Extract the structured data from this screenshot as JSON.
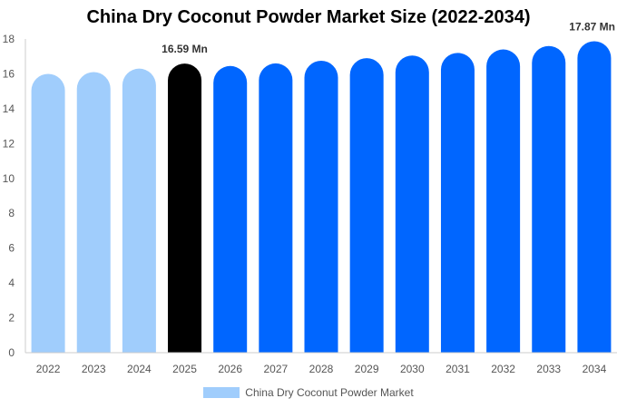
{
  "chart_data": {
    "type": "bar",
    "title": "China Dry Coconut Powder Market Size (2022-2034)",
    "categories": [
      "2022",
      "2023",
      "2024",
      "2025",
      "2026",
      "2027",
      "2028",
      "2029",
      "2030",
      "2031",
      "2032",
      "2033",
      "2034"
    ],
    "series": [
      {
        "name": "China Dry Coconut Powder Market",
        "values": [
          16.0,
          16.1,
          16.3,
          16.59,
          16.45,
          16.6,
          16.75,
          16.9,
          17.05,
          17.2,
          17.4,
          17.6,
          17.87
        ]
      }
    ],
    "data_labels": [
      {
        "category": "2025",
        "text": "16.59 Mn"
      },
      {
        "category": "2034",
        "text": "17.87 Mn"
      }
    ],
    "yticks": [
      0,
      2,
      4,
      6,
      8,
      10,
      12,
      14,
      16,
      18
    ],
    "ylim": [
      0,
      18
    ],
    "xlabel": "",
    "ylabel": "",
    "grid": false,
    "legend_position": "bottom",
    "colors": {
      "historical": "#a0cdfc",
      "current": "#000000",
      "forecast": "#0066ff",
      "axis": "#cccccc"
    },
    "historical_count": 3,
    "current_index": 3
  }
}
